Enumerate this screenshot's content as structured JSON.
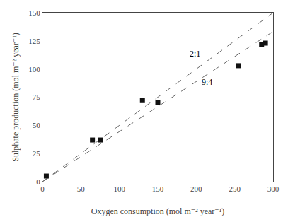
{
  "chart_data": {
    "type": "scatter",
    "xlabel": "Oxygen consumption (mol m⁻² year⁻¹)",
    "ylabel": "Sulphate production (mol m⁻² year⁻¹)",
    "series": [
      {
        "type": "line",
        "line_style": "dashed",
        "color": "#666666",
        "x": [
          0,
          300
        ],
        "values": [
          0,
          150
        ]
      },
      {
        "type": "line",
        "line_style": "dashed",
        "color": "#666666",
        "x": [
          0,
          300
        ],
        "values": [
          0,
          133.32
        ]
      },
      {
        "type": "scatter",
        "marker": "square",
        "color": "#111111",
        "x": [
          5,
          65,
          75,
          130,
          150,
          255,
          285,
          290
        ],
        "values": [
          5,
          37,
          37,
          72,
          70,
          103,
          122,
          123
        ]
      }
    ],
    "annotations": [
      {
        "text": "2:1",
        "x": 190,
        "y": 108
      },
      {
        "text": "9:4",
        "x": 205,
        "y": 83
      }
    ],
    "xlim": [
      0,
      300
    ],
    "ylim": [
      0,
      150
    ],
    "xticks": [
      0,
      50,
      100,
      150,
      200,
      250,
      300
    ],
    "yticks": [
      0,
      25,
      50,
      75,
      100,
      125,
      150
    ],
    "grid": false
  }
}
